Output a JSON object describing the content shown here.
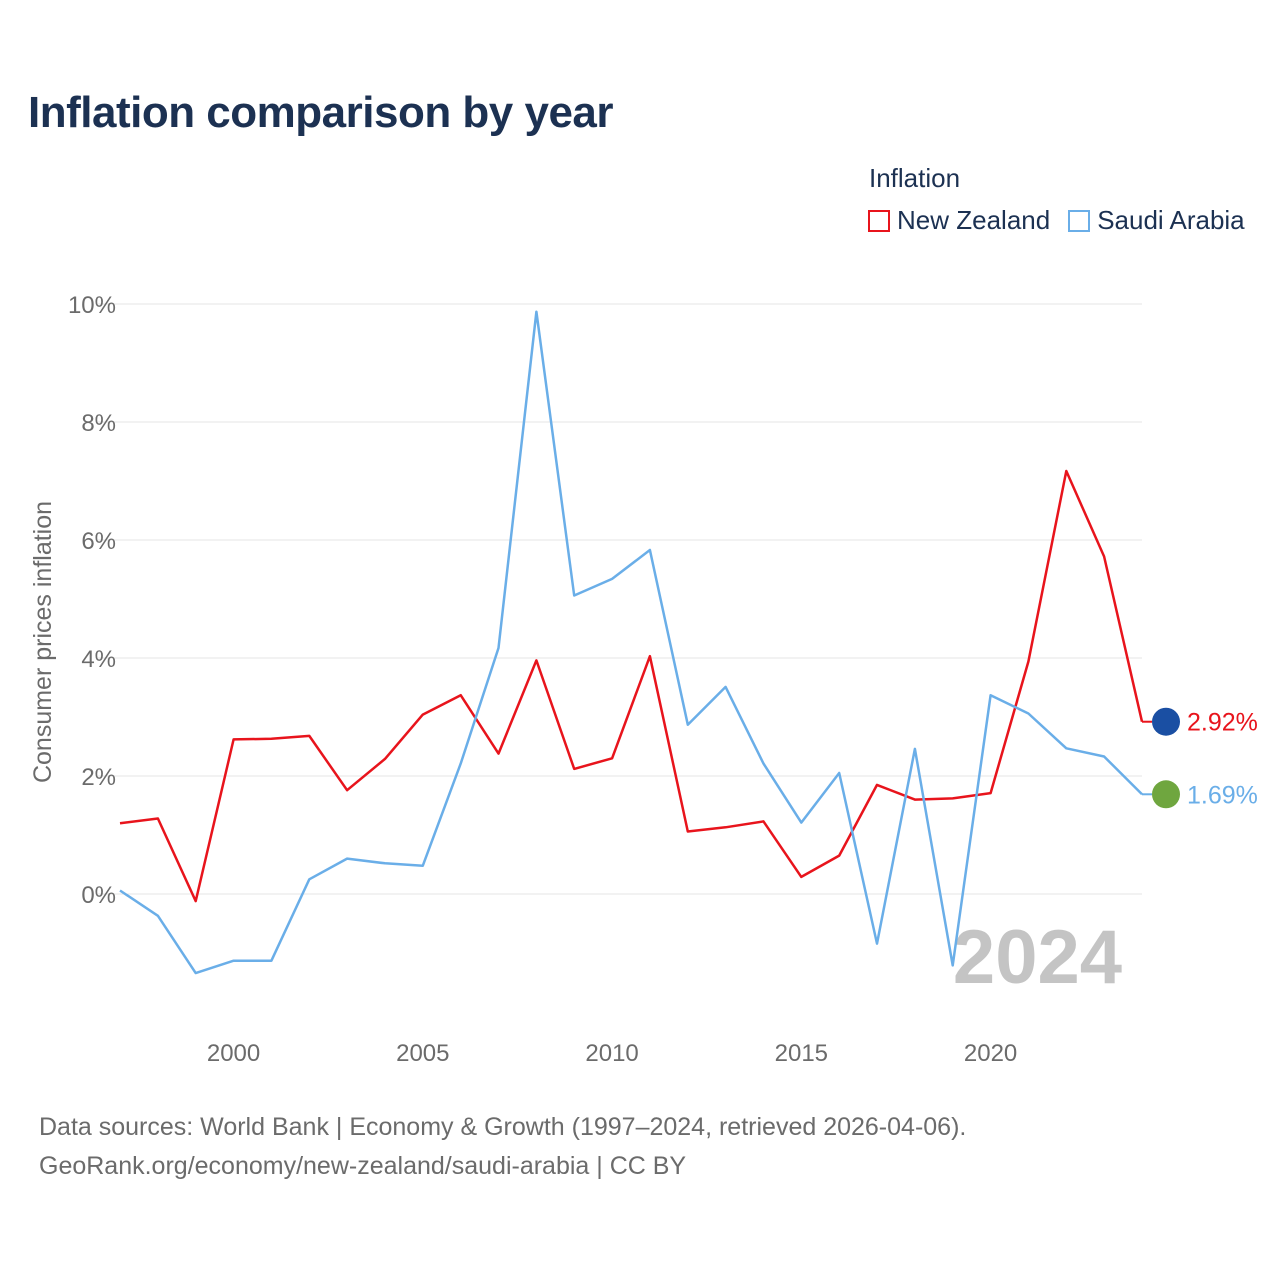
{
  "title": "Inflation comparison by year",
  "legend": {
    "title": "Inflation",
    "items": [
      {
        "label": "New Zealand",
        "color": "#e8141c"
      },
      {
        "label": "Saudi Arabia",
        "color": "#6aaee8"
      }
    ]
  },
  "year_watermark": "2024",
  "footer": {
    "line1": "Data sources: World Bank | Economy & Growth (1997–2024, retrieved 2026-04-06).",
    "line2": "GeoRank.org/economy/new-zealand/saudi-arabia | CC BY"
  },
  "chart_data": {
    "type": "line",
    "title": "Inflation comparison by year",
    "xlabel": "",
    "ylabel": "Consumer prices inflation",
    "xlim": [
      1997,
      2024
    ],
    "ylim": [
      -2,
      10
    ],
    "x_ticks": [
      2000,
      2005,
      2010,
      2015,
      2020
    ],
    "y_ticks": [
      0,
      2,
      4,
      6,
      8,
      10
    ],
    "y_tick_labels": [
      "0%",
      "2%",
      "4%",
      "6%",
      "8%",
      "10%"
    ],
    "grid": true,
    "x": [
      1997,
      1998,
      1999,
      2000,
      2001,
      2002,
      2003,
      2004,
      2005,
      2006,
      2007,
      2008,
      2009,
      2010,
      2011,
      2012,
      2013,
      2014,
      2015,
      2016,
      2017,
      2018,
      2019,
      2020,
      2021,
      2022,
      2023,
      2024
    ],
    "series": [
      {
        "name": "New Zealand",
        "color": "#e8141c",
        "end_label": "2.92%",
        "values": [
          1.2,
          1.28,
          -0.12,
          2.62,
          2.63,
          2.68,
          1.76,
          2.29,
          3.04,
          3.37,
          2.38,
          3.96,
          2.12,
          2.3,
          4.03,
          1.06,
          1.13,
          1.23,
          0.29,
          0.65,
          1.85,
          1.6,
          1.62,
          1.71,
          3.94,
          7.17,
          5.72,
          2.92
        ]
      },
      {
        "name": "Saudi Arabia",
        "color": "#6aaee8",
        "end_label": "1.69%",
        "values": [
          0.06,
          -0.37,
          -1.34,
          -1.13,
          -1.13,
          0.25,
          0.6,
          0.52,
          0.48,
          2.21,
          4.17,
          9.87,
          5.06,
          5.34,
          5.83,
          2.87,
          3.51,
          2.21,
          1.21,
          2.05,
          -0.84,
          2.46,
          -1.21,
          3.37,
          3.06,
          2.47,
          2.33,
          1.69
        ]
      }
    ]
  }
}
